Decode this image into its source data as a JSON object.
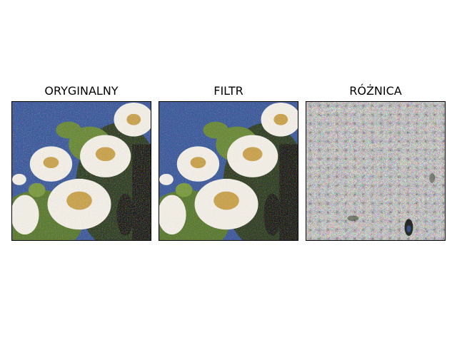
{
  "figure": {
    "panels": [
      {
        "id": "original",
        "title": "ORYGINALNY"
      },
      {
        "id": "filtered",
        "title": "FILTR"
      },
      {
        "id": "difference",
        "title": "RÓŻNICA"
      }
    ]
  },
  "colors": {
    "sky": "#3a5a9c",
    "petal": "#f2eee6",
    "flower_center": "#c9a24a",
    "foliage": "#5a7a2a",
    "shadow": "#1a1a12",
    "noise_base": "#8a8a84"
  }
}
